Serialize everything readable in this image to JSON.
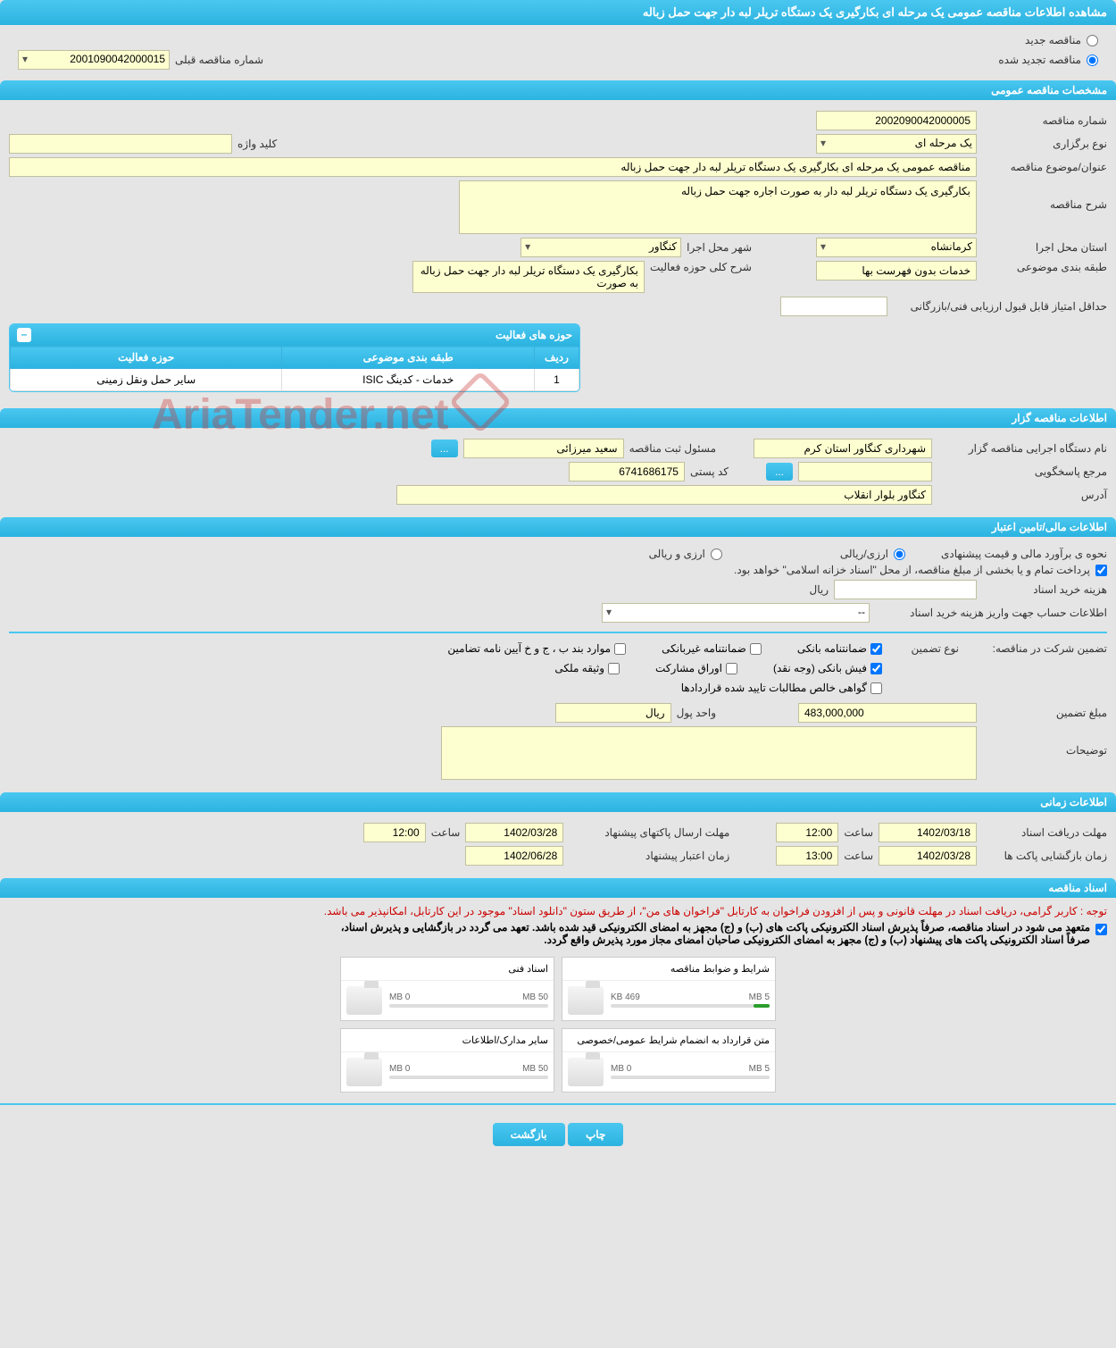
{
  "header": {
    "title": "مشاهده اطلاعات مناقصه عمومی یک مرحله ای بکارگیری یک دستگاه تریلر لبه دار جهت حمل زباله"
  },
  "tender_status": {
    "new_label": "مناقصه جدید",
    "renewed_label": "مناقصه تجدید شده",
    "prev_number_label": "شماره مناقصه قبلی",
    "prev_number_value": "2001090042000015"
  },
  "sections": {
    "general": "مشخصات مناقصه عمومی",
    "owner": "اطلاعات مناقصه گزار",
    "financial": "اطلاعات مالی/تامین اعتبار",
    "timing": "اطلاعات زمانی",
    "documents": "اسناد مناقصه"
  },
  "general": {
    "number_label": "شماره مناقصه",
    "number_value": "2002090042000005",
    "holding_type_label": "نوع برگزاری",
    "holding_type_value": "یک مرحله ای",
    "keyword_label": "کلید واژه",
    "keyword_value": "",
    "title_label": "عنوان/موضوع مناقصه",
    "title_value": "مناقصه عمومی یک مرحله ای بکارگیری یک دستگاه تریلر لبه دار جهت حمل زباله",
    "desc_label": "شرح مناقصه",
    "desc_value": "بکارگیری یک دستگاه تریلر لبه دار به صورت اجاره جهت حمل زباله",
    "province_label": "استان محل اجرا",
    "province_value": "کرمانشاه",
    "city_label": "شهر محل اجرا",
    "city_value": "کنگاور",
    "category_label": "طبقه بندی موضوعی",
    "category_value": "خدمات بدون فهرست بها",
    "activity_desc_label": "شرح کلی حوزه فعالیت",
    "activity_desc_value": "بکارگیری یک دستگاه تریلر لبه دار جهت حمل زباله به صورت",
    "min_score_label": "حداقل امتیاز قابل قبول ارزیابی فنی/بازرگانی",
    "min_score_value": ""
  },
  "activity_panel": {
    "title": "حوزه های فعالیت",
    "col_row": "ردیف",
    "col_category": "طبقه بندی موضوعی",
    "col_activity": "حوزه فعالیت",
    "rows": [
      {
        "idx": "1",
        "category": "خدمات - کدینگ ISIC",
        "activity": "سایر حمل ونقل زمینی"
      }
    ]
  },
  "owner": {
    "executor_label": "نام دستگاه اجرایی مناقصه گزار",
    "executor_value": "شهرداری کنگاور استان کرم",
    "reg_officer_label": "مسئول ثبت مناقصه",
    "reg_officer_value": "سعید میرزائی",
    "responder_label": "مرجع پاسخگویی",
    "responder_value": "",
    "postal_label": "کد پستی",
    "postal_value": "6741686175",
    "address_label": "آدرس",
    "address_value": "کنگاور بلوار انقلاب",
    "btn_more": "..."
  },
  "financial": {
    "estimate_label": "نحوه ی برآورد مالی و قیمت پیشنهادی",
    "currency_rial": "ارزی/ریالی",
    "currency_both": "ارزی و ریالی",
    "treasury_note": "پرداخت تمام و یا بخشی از مبلغ مناقصه، از محل \"اسناد خزانه اسلامی\" خواهد بود.",
    "doc_fee_label": "هزینه خرید اسناد",
    "doc_fee_unit": "ریال",
    "doc_fee_value": "",
    "account_label": "اطلاعات حساب جهت واریز هزینه خرید اسناد",
    "account_value": "--",
    "guarantee_section_label": "تضمین شرکت در مناقصه:",
    "guarantee_type_label": "نوع تضمین",
    "chk_bank_guarantee": "ضمانتنامه بانکی",
    "chk_nonbank_guarantee": "ضمانتنامه غیربانکی",
    "chk_regulation": "موارد بند ب ، ج و خ آیین نامه تضامین",
    "chk_bank_receipt": "فیش بانکی (وجه نقد)",
    "chk_securities": "اوراق مشارکت",
    "chk_property": "وثیقه ملکی",
    "chk_receivables": "گواهی خالص مطالبات تایید شده قراردادها",
    "guarantee_amount_label": "مبلغ تضمین",
    "guarantee_amount_value": "483,000,000",
    "currency_unit_label": "واحد پول",
    "currency_unit_value": "ریال",
    "notes_label": "توضیحات",
    "notes_value": ""
  },
  "timing": {
    "doc_deadline_label": "مهلت دریافت اسناد",
    "doc_deadline_date": "1402/03/18",
    "doc_deadline_time_label": "ساعت",
    "doc_deadline_time": "12:00",
    "packet_send_label": "مهلت ارسال پاکتهای پیشنهاد",
    "packet_send_date": "1402/03/28",
    "packet_send_time_label": "ساعت",
    "packet_send_time": "12:00",
    "opening_label": "زمان بازگشایی پاکت ها",
    "opening_date": "1402/03/28",
    "opening_time_label": "ساعت",
    "opening_time": "13:00",
    "validity_label": "زمان اعتبار پیشنهاد",
    "validity_date": "1402/06/28"
  },
  "documents": {
    "notice_red": "توجه : کاربر گرامی، دریافت اسناد در مهلت قانونی و پس از افزودن فراخوان به کارتابل \"فراخوان های من\"، از طریق ستون \"دانلود اسناد\" موجود در این کارتابل، امکانپذیر می باشد.",
    "notice1": "متعهد می شود در اسناد مناقصه، صرفاً پذیرش اسناد الکترونیکی پاکت های (ب) و (ج) مجهز به امضای الکترونیکی قید شده باشد. تعهد می گردد در بازگشایی و پذیرش اسناد،",
    "notice2": "صرفاً اسناد الکترونیکی پاکت های پیشنهاد (ب) و (ج) مجهز به امضای الکترونیکی صاحبان امضای مجاز مورد پذیرش واقع گردد.",
    "docs": [
      {
        "title": "شرایط و ضوابط مناقصه",
        "used": "469 KB",
        "total": "5 MB",
        "fill_pct": 10
      },
      {
        "title": "اسناد فنی",
        "used": "0 MB",
        "total": "50 MB",
        "fill_pct": 0
      },
      {
        "title": "متن قرارداد به انضمام شرایط عمومی/خصوصی",
        "used": "0 MB",
        "total": "5 MB",
        "fill_pct": 0
      },
      {
        "title": "سایر مدارک/اطلاعات",
        "used": "0 MB",
        "total": "50 MB",
        "fill_pct": 0
      }
    ]
  },
  "footer": {
    "print": "چاپ",
    "back": "بازگشت"
  },
  "watermark": "AriaTender.net"
}
